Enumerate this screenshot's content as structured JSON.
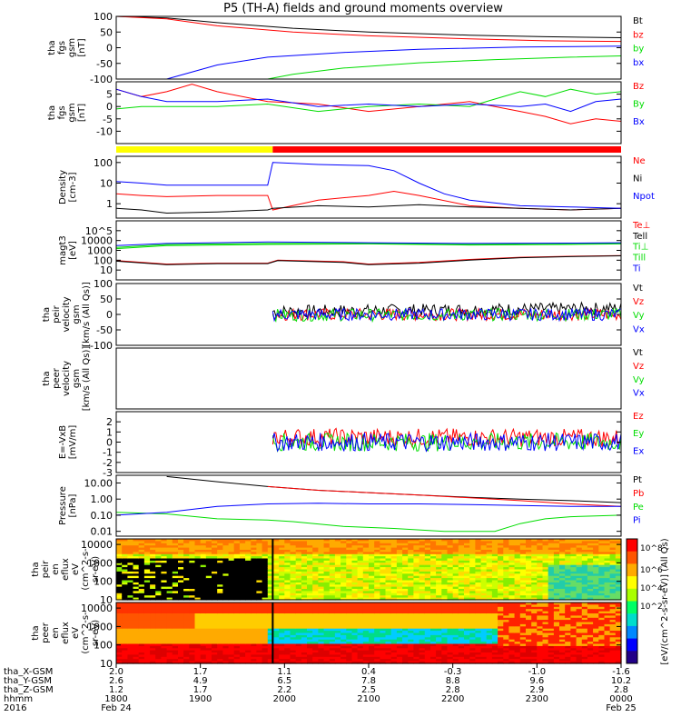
{
  "title": "P5 (TH-A) fields and ground moments overview",
  "colors": {
    "black": "#000000",
    "red": "#ff0000",
    "green": "#00dd00",
    "blue": "#0000ff",
    "yellow": "#ffff00"
  },
  "chart_data": [
    {
      "type": "line",
      "id": "fgs-gsm",
      "ylabel": [
        "tha",
        "fgs",
        "gsm",
        "[nT]"
      ],
      "ylim": [
        -100,
        100
      ],
      "yticks": [
        -100,
        -50,
        0,
        50,
        100
      ],
      "log": false,
      "series": [
        {
          "name": "Bt",
          "color": "#000000",
          "x": [
            0,
            0.1,
            0.2,
            0.35,
            0.5,
            0.7,
            0.85,
            1
          ],
          "y": [
            100,
            95,
            80,
            62,
            50,
            40,
            35,
            32
          ]
        },
        {
          "name": "bz",
          "color": "#ff0000",
          "x": [
            0,
            0.1,
            0.2,
            0.35,
            0.5,
            0.7,
            0.85,
            1
          ],
          "y": [
            100,
            92,
            70,
            50,
            38,
            28,
            22,
            20
          ]
        },
        {
          "name": "by",
          "color": "#00dd00",
          "x": [
            0.3,
            0.35,
            0.45,
            0.6,
            0.75,
            0.9,
            1
          ],
          "y": [
            -100,
            -85,
            -65,
            -48,
            -38,
            -30,
            -26
          ]
        },
        {
          "name": "bx",
          "color": "#0000ff",
          "x": [
            0.1,
            0.2,
            0.3,
            0.45,
            0.6,
            0.8,
            1
          ],
          "y": [
            -100,
            -55,
            -30,
            -15,
            -5,
            2,
            5
          ]
        }
      ]
    },
    {
      "type": "line",
      "id": "fgs-gsm-detrend",
      "ylabel": [
        "tha",
        "fgs",
        "gsm",
        "[nT]"
      ],
      "ylim": [
        -15,
        10
      ],
      "yticks": [
        -10,
        -5,
        0,
        5
      ],
      "log": false,
      "series": [
        {
          "name": "Bz",
          "color": "#ff0000",
          "x": [
            0,
            0.05,
            0.1,
            0.15,
            0.2,
            0.3,
            0.4,
            0.5,
            0.6,
            0.7,
            0.75,
            0.8,
            0.85,
            0.9,
            0.95,
            1
          ],
          "y": [
            7,
            4,
            6,
            9,
            6,
            2,
            1,
            -2,
            0,
            2,
            0,
            -2,
            -4,
            -7,
            -5,
            -6
          ]
        },
        {
          "name": "By",
          "color": "#00dd00",
          "x": [
            0,
            0.05,
            0.1,
            0.2,
            0.3,
            0.4,
            0.5,
            0.6,
            0.7,
            0.75,
            0.8,
            0.85,
            0.9,
            0.95,
            1
          ],
          "y": [
            -1,
            0,
            0,
            0,
            1,
            -2,
            0,
            1,
            0,
            3,
            6,
            4,
            7,
            5,
            6
          ]
        },
        {
          "name": "Bx",
          "color": "#0000ff",
          "x": [
            0,
            0.05,
            0.1,
            0.2,
            0.3,
            0.4,
            0.5,
            0.6,
            0.7,
            0.8,
            0.85,
            0.9,
            0.95,
            1
          ],
          "y": [
            7,
            4,
            2,
            2,
            3,
            0,
            1,
            0,
            1,
            0,
            1,
            -2,
            2,
            3
          ]
        }
      ]
    },
    {
      "type": "line",
      "id": "density",
      "ylabel": [
        "Density",
        "[cm-3]"
      ],
      "ylim": [
        0.2,
        200
      ],
      "yticks": [
        1,
        10,
        100
      ],
      "log": true,
      "series": [
        {
          "name": "Ne",
          "color": "#ff0000",
          "x": [
            0,
            0.05,
            0.1,
            0.2,
            0.3,
            0.31,
            0.4,
            0.5,
            0.55,
            0.6,
            0.7,
            0.8,
            0.9,
            1
          ],
          "y": [
            3,
            2.5,
            2.2,
            2.5,
            2.5,
            0.5,
            1.5,
            2.5,
            4,
            2.5,
            0.8,
            0.6,
            0.5,
            0.6
          ]
        },
        {
          "name": "Ni",
          "color": "#000000",
          "x": [
            0,
            0.05,
            0.1,
            0.2,
            0.3,
            0.31,
            0.4,
            0.5,
            0.6,
            0.7,
            0.8,
            0.9,
            1
          ],
          "y": [
            0.6,
            0.5,
            0.35,
            0.4,
            0.5,
            0.6,
            0.8,
            0.7,
            0.9,
            0.7,
            0.6,
            0.5,
            0.6
          ]
        },
        {
          "name": "Npot",
          "color": "#0000ff",
          "x": [
            0,
            0.05,
            0.1,
            0.2,
            0.3,
            0.31,
            0.4,
            0.5,
            0.55,
            0.6,
            0.65,
            0.7,
            0.8,
            0.9,
            1
          ],
          "y": [
            12,
            10,
            8,
            8,
            8,
            100,
            80,
            70,
            40,
            10,
            3,
            1.5,
            0.8,
            0.7,
            0.6
          ]
        }
      ]
    },
    {
      "type": "line",
      "id": "temperature",
      "ylabel": [
        "magt3",
        "[eV]"
      ],
      "ylim": [
        1,
        1000000
      ],
      "yticks": [
        10,
        100,
        1000,
        10000,
        100000
      ],
      "log": true,
      "series": [
        {
          "name": "Te⊥",
          "color": "#ff0000",
          "x": [
            0,
            0.1,
            0.2,
            0.3,
            0.32,
            0.45,
            0.5,
            0.6,
            0.7,
            0.8,
            0.9,
            1
          ],
          "y": [
            90,
            40,
            50,
            50,
            100,
            70,
            40,
            60,
            120,
            200,
            250,
            300
          ]
        },
        {
          "name": "Tell",
          "color": "#000000",
          "x": [
            0,
            0.1,
            0.2,
            0.3,
            0.32,
            0.45,
            0.5,
            0.6,
            0.7,
            0.8,
            0.9,
            1
          ],
          "y": [
            80,
            35,
            45,
            45,
            90,
            60,
            35,
            50,
            100,
            180,
            230,
            280
          ]
        },
        {
          "name": "Ti⊥",
          "color": "#00dd00",
          "x": [
            0,
            0.1,
            0.3,
            0.5,
            0.7,
            0.9,
            1
          ],
          "y": [
            2000,
            4000,
            5000,
            5000,
            4000,
            5000,
            5000
          ]
        },
        {
          "name": "Till",
          "color": "#00dd00",
          "x": [
            0,
            0.1,
            0.3,
            0.5,
            0.7,
            0.9,
            1
          ],
          "y": [
            1500,
            3000,
            4000,
            4500,
            3500,
            4000,
            4500
          ]
        },
        {
          "name": "Ti",
          "color": "#0000ff",
          "x": [
            0,
            0.1,
            0.3,
            0.5,
            0.7,
            0.9,
            1
          ],
          "y": [
            3000,
            5000,
            7000,
            6000,
            5000,
            5500,
            6000
          ]
        }
      ]
    },
    {
      "type": "line",
      "id": "peir-velocity",
      "ylabel": [
        "tha",
        "peir",
        "velocity",
        "gsm",
        "[km/s (All Qs)]"
      ],
      "ylim": [
        -100,
        100
      ],
      "yticks": [
        -100,
        -50,
        0,
        50,
        100
      ],
      "log": false,
      "start": 0.31,
      "noise": 20,
      "series": [
        {
          "name": "Vt",
          "color": "#000000",
          "x": [
            0.31,
            1
          ],
          "y": [
            10,
            20
          ]
        },
        {
          "name": "Vz",
          "color": "#ff0000",
          "x": [
            0.31,
            1
          ],
          "y": [
            0,
            0
          ]
        },
        {
          "name": "Vy",
          "color": "#00dd00",
          "x": [
            0.31,
            1
          ],
          "y": [
            -2,
            0
          ]
        },
        {
          "name": "Vx",
          "color": "#0000ff",
          "x": [
            0.31,
            1
          ],
          "y": [
            0,
            0
          ]
        }
      ]
    },
    {
      "type": "line",
      "id": "peer-velocity",
      "ylabel": [
        "tha",
        "peer",
        "velocity",
        "gsm",
        "[km/s (All Qs)]"
      ],
      "ylim": [
        0,
        1
      ],
      "yticks": [],
      "log": false,
      "series": [
        {
          "name": "Vt",
          "color": "#000000",
          "x": [],
          "y": []
        },
        {
          "name": "Vz",
          "color": "#ff0000",
          "x": [],
          "y": []
        },
        {
          "name": "Vy",
          "color": "#00dd00",
          "x": [],
          "y": []
        },
        {
          "name": "Vx",
          "color": "#0000ff",
          "x": [],
          "y": []
        }
      ]
    },
    {
      "type": "line",
      "id": "efield",
      "ylabel": [
        "E=-VxB",
        "[mV/m]"
      ],
      "ylim": [
        -3,
        3
      ],
      "yticks": [
        -3,
        -2,
        -1,
        0,
        1,
        2
      ],
      "log": false,
      "start": 0.31,
      "noise": 0.9,
      "series": [
        {
          "name": "Ez",
          "color": "#ff0000",
          "x": [
            0.31,
            1
          ],
          "y": [
            0.5,
            0.4
          ]
        },
        {
          "name": "Ey",
          "color": "#00dd00",
          "x": [
            0.31,
            1
          ],
          "y": [
            0,
            0
          ]
        },
        {
          "name": "Ex",
          "color": "#0000ff",
          "x": [
            0.31,
            1
          ],
          "y": [
            0,
            0
          ]
        }
      ]
    },
    {
      "type": "line",
      "id": "pressure",
      "ylabel": [
        "Pressure",
        "[nPa]"
      ],
      "ylim": [
        0.005,
        30
      ],
      "yticks": [
        0.01,
        0.1,
        1,
        10
      ],
      "ytick_labels": [
        "0.01",
        "0.10",
        "1.00",
        "10.00"
      ],
      "log": true,
      "series": [
        {
          "name": "Pt",
          "color": "#000000",
          "x": [
            0.1,
            0.2,
            0.3,
            0.4,
            0.5,
            0.6,
            0.7,
            0.8,
            0.9,
            1
          ],
          "y": [
            25,
            12,
            6,
            3.5,
            2.5,
            1.8,
            1.3,
            1,
            0.8,
            0.6
          ]
        },
        {
          "name": "Pb",
          "color": "#ff0000",
          "x": [
            0.3,
            0.4,
            0.5,
            0.6,
            0.7,
            0.8,
            0.9,
            1
          ],
          "y": [
            6,
            3.5,
            2.5,
            1.8,
            1.2,
            0.8,
            0.5,
            0.35
          ]
        },
        {
          "name": "Pe",
          "color": "#00dd00",
          "x": [
            0,
            0.1,
            0.2,
            0.3,
            0.35,
            0.45,
            0.55,
            0.65,
            0.75,
            0.8,
            0.85,
            0.9,
            0.95,
            1
          ],
          "y": [
            0.15,
            0.12,
            0.06,
            0.05,
            0.04,
            0.02,
            0.015,
            0.01,
            0.01,
            0.03,
            0.06,
            0.08,
            0.09,
            0.1
          ]
        },
        {
          "name": "Pi",
          "color": "#0000ff",
          "x": [
            0,
            0.1,
            0.2,
            0.3,
            0.4,
            0.5,
            0.6,
            0.7,
            0.8,
            0.9,
            1
          ],
          "y": [
            0.1,
            0.15,
            0.35,
            0.5,
            0.55,
            0.5,
            0.5,
            0.45,
            0.4,
            0.35,
            0.35
          ]
        }
      ]
    },
    {
      "type": "heatmap",
      "id": "peir-en-eflux",
      "ylabel": [
        "tha",
        "peir",
        "en",
        "eflux",
        "eV",
        "(cm^2-s-",
        "sr-eV)"
      ],
      "ylim": [
        10,
        20000
      ],
      "yticks": [
        10,
        100,
        1000,
        10000
      ],
      "log": true
    },
    {
      "type": "heatmap",
      "id": "peer-en-eflux",
      "ylabel": [
        "tha",
        "peer",
        "en",
        "eflux",
        "eV",
        "(cm^2-s-",
        "sr-eV)"
      ],
      "ylim": [
        10,
        20000
      ],
      "yticks": [
        10,
        100,
        1000,
        10000
      ],
      "log": true
    }
  ],
  "colorbar": {
    "label": "[eV/(cm^2-s-sr-eV)] (All Qs)",
    "ticks": [
      "10^8",
      "10^6",
      "10^4",
      "10^2"
    ]
  },
  "x_axis": {
    "row_labels": [
      "tha_X-GSM",
      "tha_Y-GSM",
      "tha_Z-GSM",
      "hhmm",
      "2016"
    ],
    "columns": [
      {
        "x": "2.0",
        "y": "2.6",
        "z": "1.2",
        "time": "1800",
        "date": "Feb 24"
      },
      {
        "x": "1.7",
        "y": "4.9",
        "z": "1.7",
        "time": "1900",
        "date": ""
      },
      {
        "x": "1.1",
        "y": "6.5",
        "z": "2.2",
        "time": "2000",
        "date": ""
      },
      {
        "x": "0.4",
        "y": "7.8",
        "z": "2.5",
        "time": "2100",
        "date": ""
      },
      {
        "x": "-0.3",
        "y": "8.8",
        "z": "2.8",
        "time": "2200",
        "date": ""
      },
      {
        "x": "-1.0",
        "y": "9.6",
        "z": "2.9",
        "time": "2300",
        "date": ""
      },
      {
        "x": "-1.6",
        "y": "10.2",
        "z": "2.8",
        "time": "0000",
        "date": "Feb 25"
      }
    ]
  },
  "state_bar": {
    "segments": [
      {
        "from": 0,
        "to": 0.31,
        "color": "#ffff00"
      },
      {
        "from": 0.31,
        "to": 1,
        "color": "#ff0000"
      }
    ]
  }
}
